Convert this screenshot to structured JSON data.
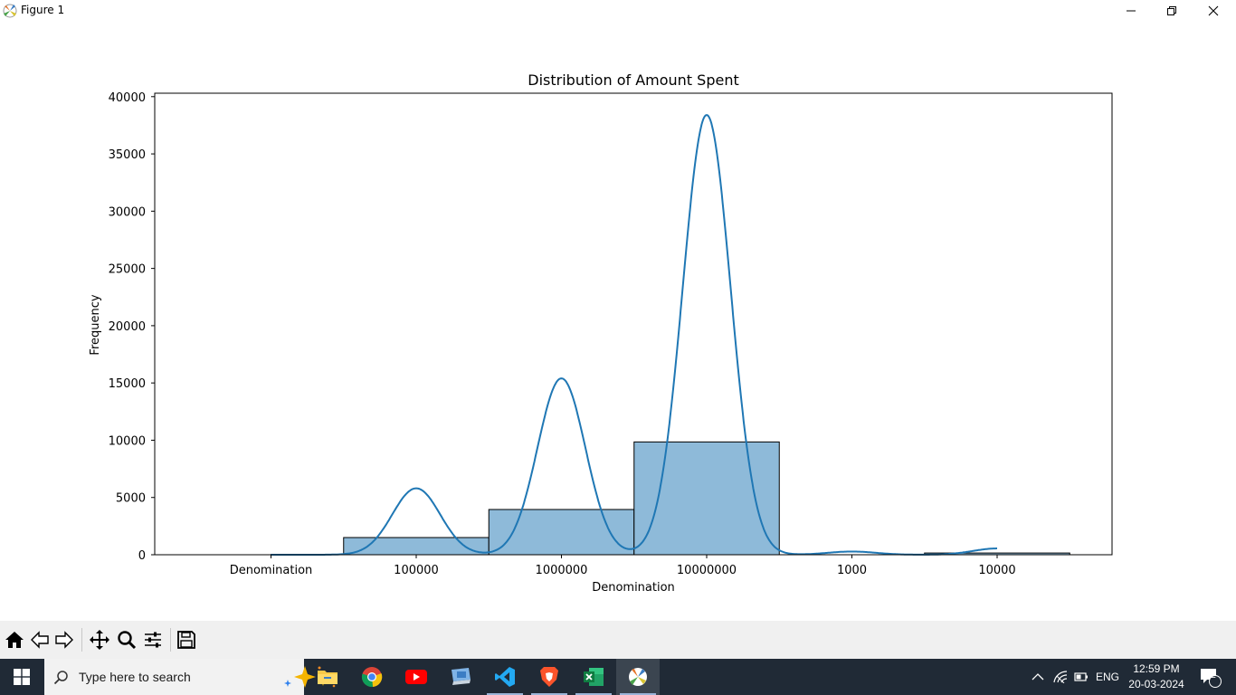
{
  "window": {
    "title": "Figure 1"
  },
  "chart_data": {
    "type": "bar",
    "title": "Distribution of Amount Spent",
    "xlabel": "Denomination",
    "ylabel": "Frequency",
    "categories": [
      "Denomination",
      "100000",
      "1000000",
      "10000000",
      "1000",
      "10000"
    ],
    "histogram_bins": [
      {
        "from": "Denomination",
        "to": "100000",
        "value": 0
      },
      {
        "from": "100000",
        "to": "1000000",
        "value": 1500
      },
      {
        "from": "1000000",
        "to": "10000000",
        "value": 3950
      },
      {
        "from": "10000000",
        "to": "1000",
        "value": 9850
      },
      {
        "from": "1000",
        "to": "10000",
        "value": 0
      },
      {
        "from": "10000",
        "to": "end",
        "value": 150
      }
    ],
    "kde_peaks": [
      {
        "at": "Denomination",
        "value": 0
      },
      {
        "at": "100000",
        "value": 5800
      },
      {
        "at": "1000000",
        "value": 15400
      },
      {
        "at": "10000000",
        "value": 38400
      },
      {
        "at": "1000",
        "value": 280
      },
      {
        "at": "10000",
        "value": 550
      }
    ],
    "yticks": [
      0,
      5000,
      10000,
      15000,
      20000,
      25000,
      30000,
      35000,
      40000
    ],
    "ylim": [
      0,
      40300
    ],
    "bar_color": "#8ebad9",
    "line_color": "#1f77b4",
    "grid": false
  },
  "toolbar": {
    "tools": [
      "home-icon",
      "back-icon",
      "forward-icon",
      "pan-icon",
      "zoom-icon",
      "configure-subplots-icon",
      "save-icon"
    ]
  },
  "taskbar": {
    "search_placeholder": "Type here to search",
    "apps": [
      "file-explorer-icon",
      "chrome-icon",
      "youtube-icon",
      "remote-desktop-icon",
      "vscode-icon",
      "brave-icon",
      "excel-icon",
      "matplotlib-icon"
    ],
    "language": "ENG",
    "time": "12:59 PM",
    "date": "20-03-2024",
    "notification_count": "2"
  }
}
